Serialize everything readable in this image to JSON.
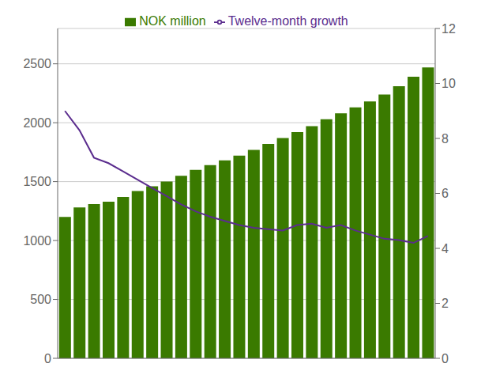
{
  "chart_data": {
    "type": "bar",
    "categories": [
      null,
      null,
      null,
      null,
      null,
      null,
      null,
      null,
      null,
      null,
      null,
      null,
      null,
      null,
      null,
      null,
      null,
      null,
      null,
      null,
      null,
      null,
      null,
      null,
      null,
      null
    ],
    "series": [
      {
        "name": "NOK million",
        "type": "bar",
        "color": "#3a7a00",
        "values": [
          1200,
          1280,
          1310,
          1330,
          1370,
          1420,
          1460,
          1500,
          1550,
          1600,
          1640,
          1680,
          1720,
          1770,
          1820,
          1870,
          1920,
          1970,
          2030,
          2080,
          2130,
          2180,
          2240,
          2310,
          2390,
          2470
        ]
      },
      {
        "name": "Twelve-month growth",
        "type": "line",
        "axis": "y2",
        "color": "#5b2d8e",
        "values": [
          9.0,
          8.3,
          7.3,
          7.1,
          6.8,
          6.5,
          6.2,
          5.9,
          5.6,
          5.35,
          5.15,
          5.0,
          4.85,
          4.75,
          4.7,
          4.65,
          4.85,
          4.9,
          4.75,
          4.85,
          4.65,
          4.5,
          4.35,
          4.3,
          4.2,
          4.45
        ]
      }
    ],
    "ylim": [
      0,
      2800
    ],
    "yticks": [
      0,
      500,
      1000,
      1500,
      2000,
      2500
    ],
    "y2lim": [
      0,
      12
    ],
    "y2ticks": [
      0,
      2,
      4,
      6,
      8,
      10,
      12
    ],
    "grid": true,
    "legend": "upper center",
    "tick_labels": "y"
  }
}
